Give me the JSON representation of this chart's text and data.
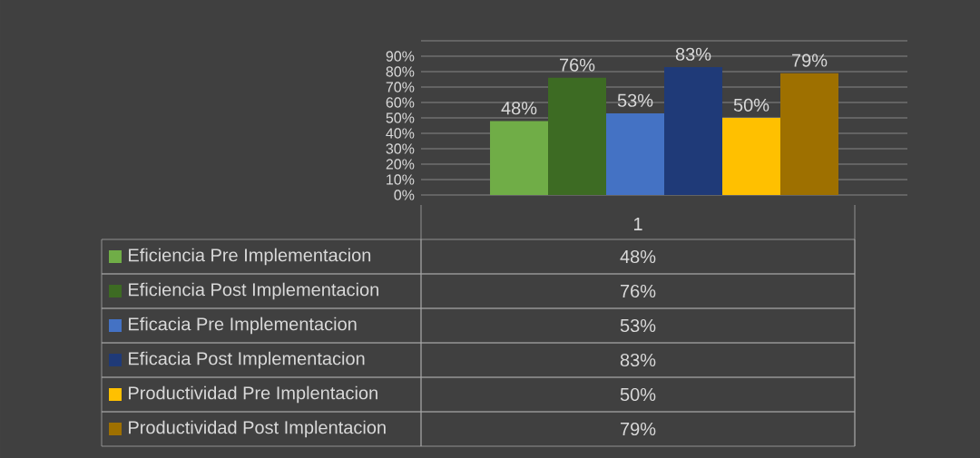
{
  "chart_data": {
    "type": "bar",
    "categories": [
      "1"
    ],
    "series": [
      {
        "name": "Eficiencia Pre Implementacion",
        "color": "#70ad47",
        "values": [
          48
        ],
        "value_labels": [
          "48%"
        ]
      },
      {
        "name": "Eficiencia Post Implementacion",
        "color": "#3d6b23",
        "values": [
          76
        ],
        "value_labels": [
          "76%"
        ]
      },
      {
        "name": "Eficacia Pre Implementacion",
        "color": "#4472c4",
        "values": [
          53
        ],
        "value_labels": [
          "53%"
        ]
      },
      {
        "name": "Eficacia Post Implementacion",
        "color": "#1f3a78",
        "values": [
          83
        ],
        "value_labels": [
          "83%"
        ]
      },
      {
        "name": "Productividad Pre Implentacion",
        "color": "#ffc000",
        "values": [
          50
        ],
        "value_labels": [
          "50%"
        ]
      },
      {
        "name": "Productividad Post Implentacion",
        "color": "#9e7000",
        "values": [
          79
        ],
        "value_labels": [
          "79%"
        ]
      }
    ],
    "ylim": [
      0,
      100
    ],
    "yticks": [
      {
        "value": 0,
        "label": "0%"
      },
      {
        "value": 10,
        "label": "10%"
      },
      {
        "value": 20,
        "label": "20%"
      },
      {
        "value": 30,
        "label": "30%"
      },
      {
        "value": 40,
        "label": "40%"
      },
      {
        "value": 50,
        "label": "50%"
      },
      {
        "value": 60,
        "label": "60%"
      },
      {
        "value": 70,
        "label": "70%"
      },
      {
        "value": 80,
        "label": "80%"
      },
      {
        "value": 90,
        "label": "90%"
      },
      {
        "value": 100,
        "label": null
      }
    ],
    "grid": true,
    "legend": "bottom"
  }
}
